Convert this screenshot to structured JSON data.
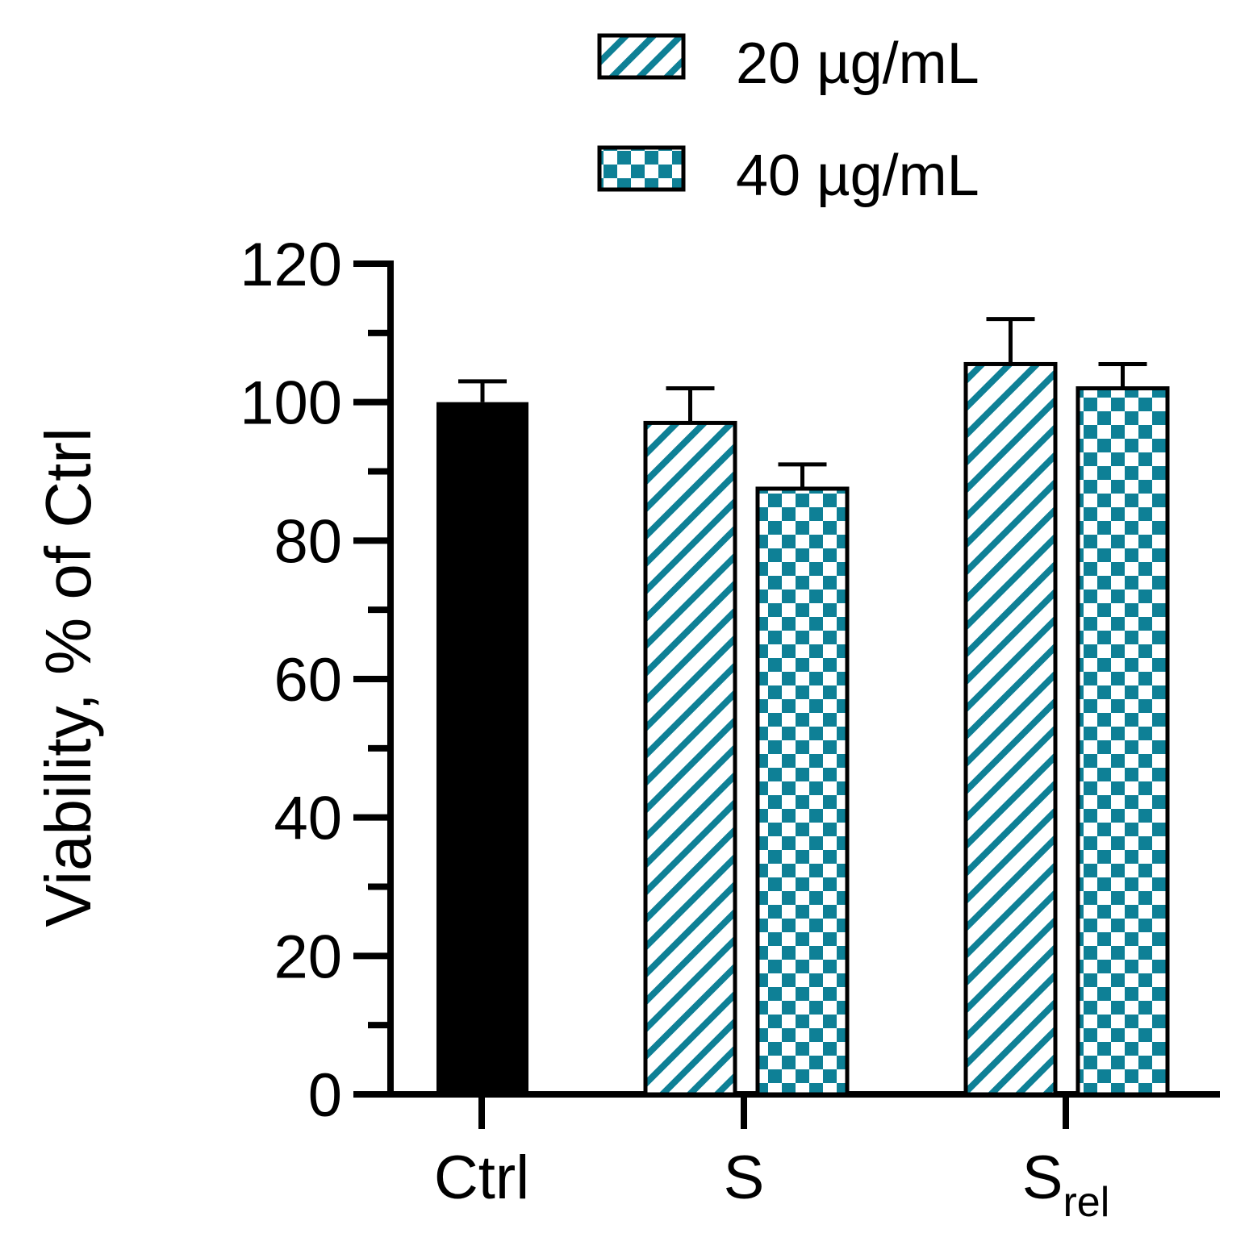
{
  "colors": {
    "teal": "#0e8096",
    "black": "#000000",
    "white": "#ffffff"
  },
  "chart_data": {
    "type": "bar",
    "title": "",
    "xlabel": "",
    "ylabel": "Viability, % of Ctrl",
    "ylim": [
      0,
      120
    ],
    "yticks": [
      0,
      20,
      40,
      60,
      80,
      100,
      120
    ],
    "yminor_step": 10,
    "categories": [
      {
        "base": "Ctrl",
        "sub": ""
      },
      {
        "base": "S",
        "sub": ""
      },
      {
        "base": "S",
        "sub": "rel"
      }
    ],
    "legend": {
      "position": "top",
      "entries": [
        {
          "label": "20 µg/mL",
          "pattern": "diagonal-stripes"
        },
        {
          "label": "40 µg/mL",
          "pattern": "checkerboard"
        }
      ]
    },
    "bars": [
      {
        "category": "Ctrl",
        "series": "control",
        "value": 100,
        "error": 3,
        "pattern": "solid-black"
      },
      {
        "category": "S",
        "series": "20 µg/mL",
        "value": 97,
        "error": 5,
        "pattern": "diagonal-stripes"
      },
      {
        "category": "S",
        "series": "40 µg/mL",
        "value": 87.5,
        "error": 3.5,
        "pattern": "checkerboard"
      },
      {
        "category": "Srel",
        "series": "20 µg/mL",
        "value": 105.5,
        "error": 6.5,
        "pattern": "diagonal-stripes"
      },
      {
        "category": "Srel",
        "series": "40 µg/mL",
        "value": 102,
        "error": 3.5,
        "pattern": "checkerboard"
      }
    ]
  }
}
